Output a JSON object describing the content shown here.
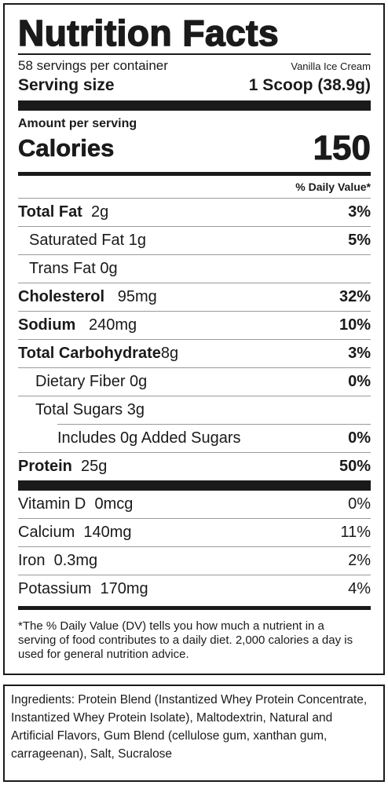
{
  "title": "Nutrition Facts",
  "servings_per_container": "58 servings per container",
  "product_name": "Vanilla Ice Cream",
  "serving_size_label": "Serving size",
  "serving_size_value": "1 Scoop (38.9g)",
  "amount_per_serving": "Amount per serving",
  "calories_label": "Calories",
  "calories_value": "150",
  "daily_value_header": "% Daily Value*",
  "nutrients": [
    {
      "name": "Total Fat",
      "amount": "2g",
      "dv": "3%"
    },
    {
      "name": "Saturated Fat",
      "amount": "1g",
      "dv": "5%"
    },
    {
      "name": "Trans Fat",
      "amount": "0g",
      "dv": ""
    },
    {
      "name": "Cholesterol",
      "amount": "95mg",
      "dv": "32%"
    },
    {
      "name": "Sodium",
      "amount": "240mg",
      "dv": "10%"
    },
    {
      "name": "Total Carbohydrate",
      "amount": "8g",
      "dv": "3%"
    },
    {
      "name": "Dietary Fiber",
      "amount": "0g",
      "dv": "0%"
    },
    {
      "name": "Total Sugars",
      "amount": "3g",
      "dv": ""
    },
    {
      "name": "Includes 0g Added Sugars",
      "amount": "",
      "dv": "0%"
    },
    {
      "name": "Protein",
      "amount": "25g",
      "dv": "50%"
    }
  ],
  "vitamins": [
    {
      "name": "Vitamin D",
      "amount": "0mcg",
      "dv": "0%"
    },
    {
      "name": "Calcium",
      "amount": "140mg",
      "dv": "11%"
    },
    {
      "name": "Iron",
      "amount": "0.3mg",
      "dv": "2%"
    },
    {
      "name": "Potassium",
      "amount": "170mg",
      "dv": "4%"
    }
  ],
  "footnote": "*The % Daily Value (DV) tells you how much a nutrient in a serving of food contributes to a daily diet. 2,000 calories a day is used for general nutrition advice.",
  "ingredients": "Ingredients: Protein Blend (Instantized Whey Protein Concentrate, Instantized Whey Protein Isolate), Maltodextrin, Natural and Artificial Flavors, Gum Blend (cellulose gum, xanthan gum, carrageenan), Salt, Sucralose"
}
